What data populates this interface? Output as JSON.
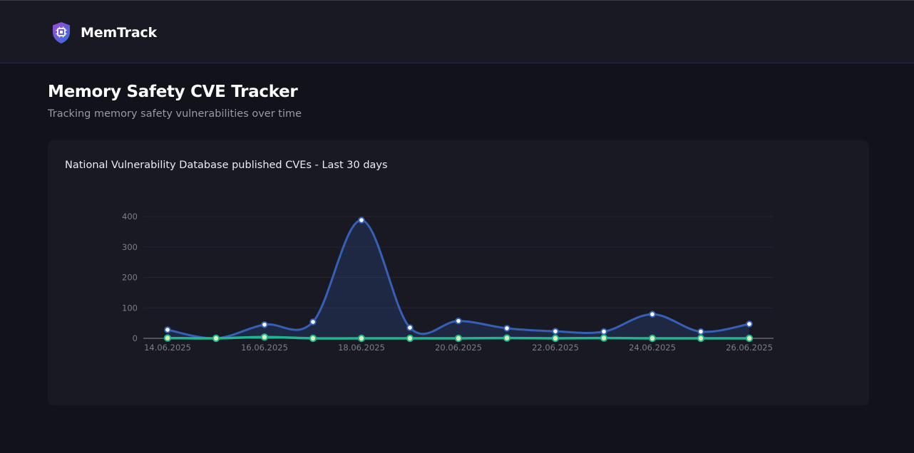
{
  "app": {
    "name": "MemTrack",
    "logo_icon": "shield-chip-icon"
  },
  "page": {
    "title": "Memory Safety CVE Tracker",
    "subtitle": "Tracking memory safety vulnerabilities over time"
  },
  "card": {
    "title": "National Vulnerability Database published CVEs - Last 30 days"
  },
  "colors": {
    "background": "#12121a",
    "card": "#191923",
    "series_total": "#3560b6",
    "series_memory": "#20b490",
    "marker_memory_fill": "#d7f2b8"
  },
  "chart_data": {
    "type": "area",
    "x": [
      "14.06.2025",
      "15.06.2025",
      "16.06.2025",
      "17.06.2025",
      "18.06.2025",
      "19.06.2025",
      "20.06.2025",
      "21.06.2025",
      "22.06.2025",
      "23.06.2025",
      "24.06.2025",
      "25.06.2025",
      "26.06.2025"
    ],
    "x_ticks": [
      "14.06.2025",
      "16.06.2025",
      "18.06.2025",
      "20.06.2025",
      "22.06.2025",
      "24.06.2025",
      "26.06.2025"
    ],
    "y_ticks": [
      0,
      100,
      200,
      300,
      400
    ],
    "ylim": [
      0,
      400
    ],
    "grid": true,
    "legend": "none",
    "series": [
      {
        "values": [
          28,
          0,
          45,
          54,
          388,
          35,
          57,
          33,
          23,
          22,
          79,
          22,
          47
        ],
        "color": "#3560b6",
        "fill": true
      },
      {
        "values": [
          1,
          0,
          4,
          0,
          0,
          0,
          0,
          1,
          0,
          1,
          0,
          0,
          0
        ],
        "color": "#20b490",
        "fill": false
      }
    ]
  }
}
